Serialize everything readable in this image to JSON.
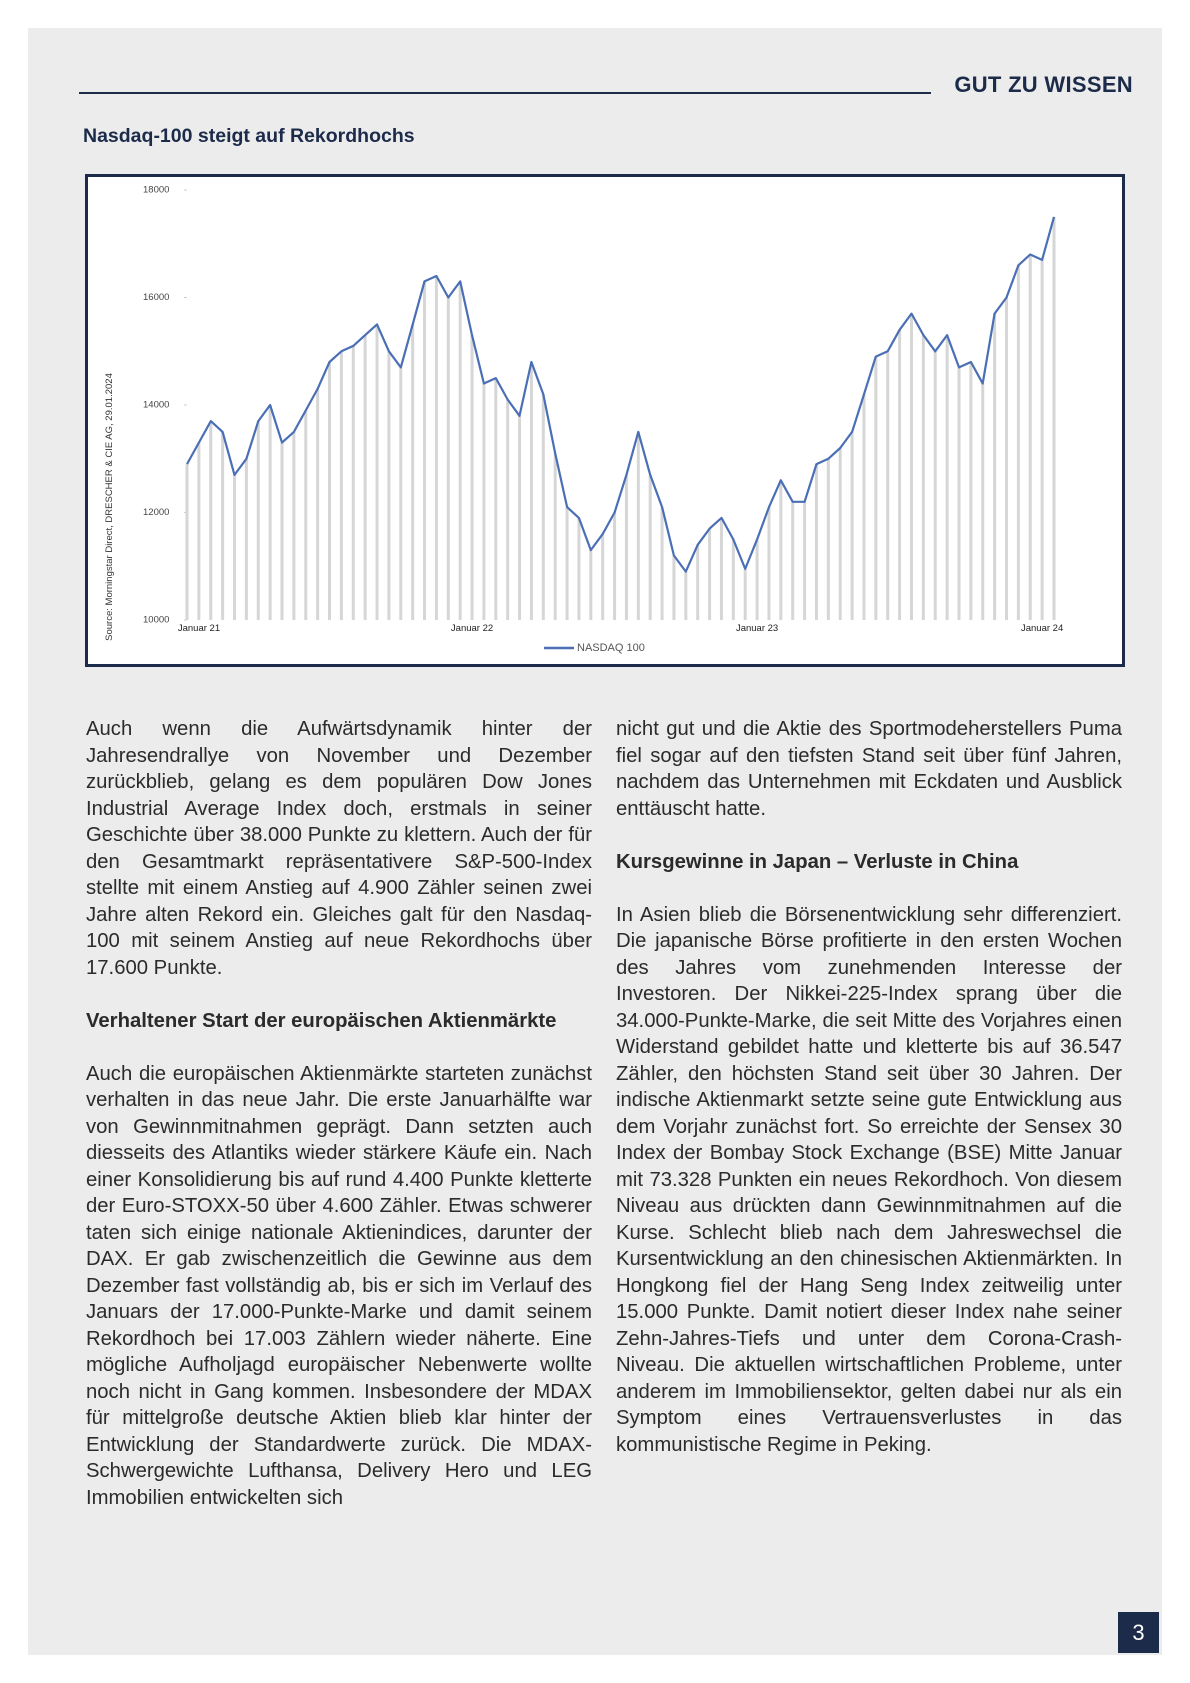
{
  "header": {
    "section": "GUT ZU WISSEN"
  },
  "chart_data": {
    "type": "line",
    "title": "Nasdaq-100 steigt auf Rekordhochs",
    "source": "Source: Morningstar Direct, DRESCHER & CIE AG, 29.01.2024",
    "categories": [
      "Januar 21",
      null,
      null,
      null,
      null,
      null,
      null,
      null,
      null,
      null,
      null,
      null,
      null,
      null,
      null,
      null,
      null,
      null,
      null,
      null,
      null,
      null,
      null,
      null,
      "Januar 22",
      null,
      null,
      null,
      null,
      null,
      null,
      null,
      null,
      null,
      null,
      null,
      null,
      null,
      null,
      null,
      null,
      null,
      null,
      null,
      null,
      null,
      null,
      null,
      "Januar 23",
      null,
      null,
      null,
      null,
      null,
      null,
      null,
      null,
      null,
      null,
      null,
      null,
      null,
      null,
      null,
      null,
      null,
      null,
      null,
      null,
      null,
      null,
      null,
      "Januar 24",
      null
    ],
    "series": [
      {
        "name": "NASDAQ 100",
        "color": "#4a6fb5",
        "values": [
          12900,
          13300,
          13700,
          13500,
          12700,
          13000,
          13700,
          14000,
          13300,
          13500,
          13900,
          14300,
          14800,
          15000,
          15100,
          15300,
          15500,
          15000,
          14700,
          15500,
          16300,
          16400,
          16000,
          16300,
          15300,
          14400,
          14500,
          14100,
          13800,
          14800,
          14200,
          13100,
          12100,
          11900,
          11300,
          11600,
          12000,
          12700,
          13500,
          12700,
          12100,
          11200,
          10900,
          11400,
          11700,
          11900,
          11500,
          10950,
          11500,
          12100,
          12600,
          12200,
          12200,
          12900,
          13000,
          13200,
          13500,
          14200,
          14900,
          15000,
          15400,
          15700,
          15300,
          15000,
          15300,
          14700,
          14800,
          14400,
          15700,
          16000,
          16600,
          16800,
          16700,
          17500
        ]
      }
    ],
    "ylim": [
      10000,
      18000
    ],
    "yticks": [
      10000,
      12000,
      14000,
      16000,
      18000
    ],
    "drop_line_color": "#d6d6d6",
    "legend": "bottom"
  },
  "article": {
    "column_1": {
      "paragraph_1": "Auch wenn die Aufwärtsdynamik hinter der Jahresendrallye von November und Dezember zurückblieb, gelang es dem populären Dow Jones Industrial Average Index doch, erstmals in seiner Geschichte über 38.000 Punkte zu klettern. Auch der für den Gesamtmarkt repräsentativere S&P-500-Index stellte mit einem Anstieg auf 4.900 Zähler seinen zwei Jahre alten Rekord ein. Gleiches galt für den Nasdaq-100 mit seinem Anstieg auf neue Rekordhochs über 17.600 Punkte.",
      "heading": "Verhaltener Start der europäischen Aktienmärkte",
      "paragraph_2": "Auch die europäischen Aktienmärkte starteten zunächst verhalten in das neue Jahr. Die erste Januarhälfte war von Gewinnmitnahmen geprägt. Dann setzten auch diesseits des Atlantiks wieder stärkere Käufe ein. Nach einer Konsolidierung bis auf rund 4.400 Punkte kletterte der Euro-STOXX-50 über 4.600 Zähler. Etwas schwerer taten sich einige nationale Aktienindices, darunter der DAX. Er gab zwischenzeitlich die Gewinne aus dem Dezember fast vollständig ab, bis er sich im Verlauf des Januars der 17.000-Punkte-Marke und damit seinem Rekordhoch bei 17.003 Zählern wieder näherte. Eine mögliche Aufholjagd europäischer Nebenwerte wollte noch nicht in Gang kommen. Insbesondere der MDAX für mittelgroße deutsche Aktien blieb klar hinter der Entwicklung der Standardwerte zurück. Die MDAX-Schwergewichte Lufthansa, Delivery Hero und LEG Immobilien entwickelten sich"
    },
    "column_2": {
      "paragraph_1": "nicht gut und die Aktie des Sportmodeherstellers Puma fiel sogar auf den tiefsten Stand seit über fünf Jahren, nachdem das Unternehmen mit Eckdaten und Ausblick enttäuscht hatte.",
      "heading": "Kursgewinne in Japan – Verluste in China",
      "paragraph_2": "In Asien blieb die Börsenentwicklung sehr differenziert. Die japanische Börse profitierte in den ersten Wochen des Jahres vom zunehmenden Interesse der Investoren. Der Nikkei-225-Index sprang über die 34.000-Punkte-Marke, die seit Mitte des Vorjahres einen Widerstand gebildet hatte und kletterte bis auf 36.547 Zähler, den höchsten Stand seit über 30 Jahren. Der indische Aktienmarkt setzte seine gute Entwicklung aus dem Vorjahr zunächst fort. So erreichte der Sensex 30 Index der Bombay Stock Exchange (BSE) Mitte Januar mit 73.328 Punkten ein neues Rekordhoch. Von diesem Niveau aus drückten dann Gewinnmitnahmen auf die Kurse. Schlecht blieb nach dem Jahreswechsel die Kursentwicklung an den chinesischen Aktienmärkten. In Hongkong fiel der Hang Seng Index zeitweilig unter 15.000 Punkte. Damit notiert dieser Index nahe seiner Zehn-Jahres-Tiefs und unter dem Corona-Crash-Niveau. Die aktuellen wirtschaftlichen Probleme, unter anderem im Immobiliensektor, gelten dabei nur als ein Symptom eines Vertrauensverlustes in das kommunistische Regime in Peking."
    }
  },
  "page_number": "3"
}
